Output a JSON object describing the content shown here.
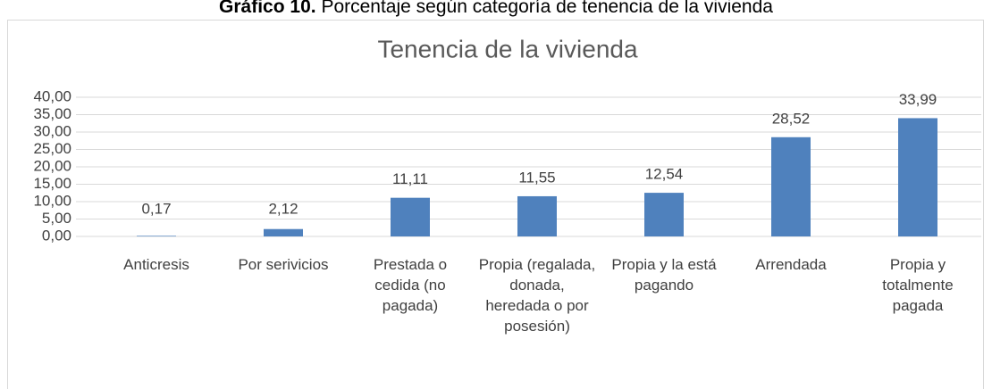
{
  "header": {
    "label": "Gráfico 10.",
    "text": "Porcentaje según categoría de tenencia de la vivienda"
  },
  "chart_data": {
    "type": "bar",
    "title": "Tenencia de la vivienda",
    "categories": [
      "Anticresis",
      "Por serivicios",
      "Prestada o cedida (no pagada)",
      "Propia (regalada, donada, heredada o por posesión)",
      "Propia y la está pagando",
      "Arrendada",
      "Propia y totalmente pagada"
    ],
    "values": [
      0.17,
      2.12,
      11.11,
      11.55,
      12.54,
      28.52,
      33.99
    ],
    "value_labels": [
      "0,17",
      "2,12",
      "11,11",
      "11,55",
      "12,54",
      "28,52",
      "33,99"
    ],
    "color": "#4f81bd",
    "ylim": [
      0,
      40
    ],
    "yticks": [
      {
        "value": 0,
        "label": "0,00"
      },
      {
        "value": 5,
        "label": "5,00"
      },
      {
        "value": 10,
        "label": "10,00"
      },
      {
        "value": 15,
        "label": "15,00"
      },
      {
        "value": 20,
        "label": "20,00"
      },
      {
        "value": 25,
        "label": "25,00"
      },
      {
        "value": 30,
        "label": "30,00"
      },
      {
        "value": 35,
        "label": "35,00"
      },
      {
        "value": 40,
        "label": "40,00"
      }
    ],
    "grid": true
  }
}
